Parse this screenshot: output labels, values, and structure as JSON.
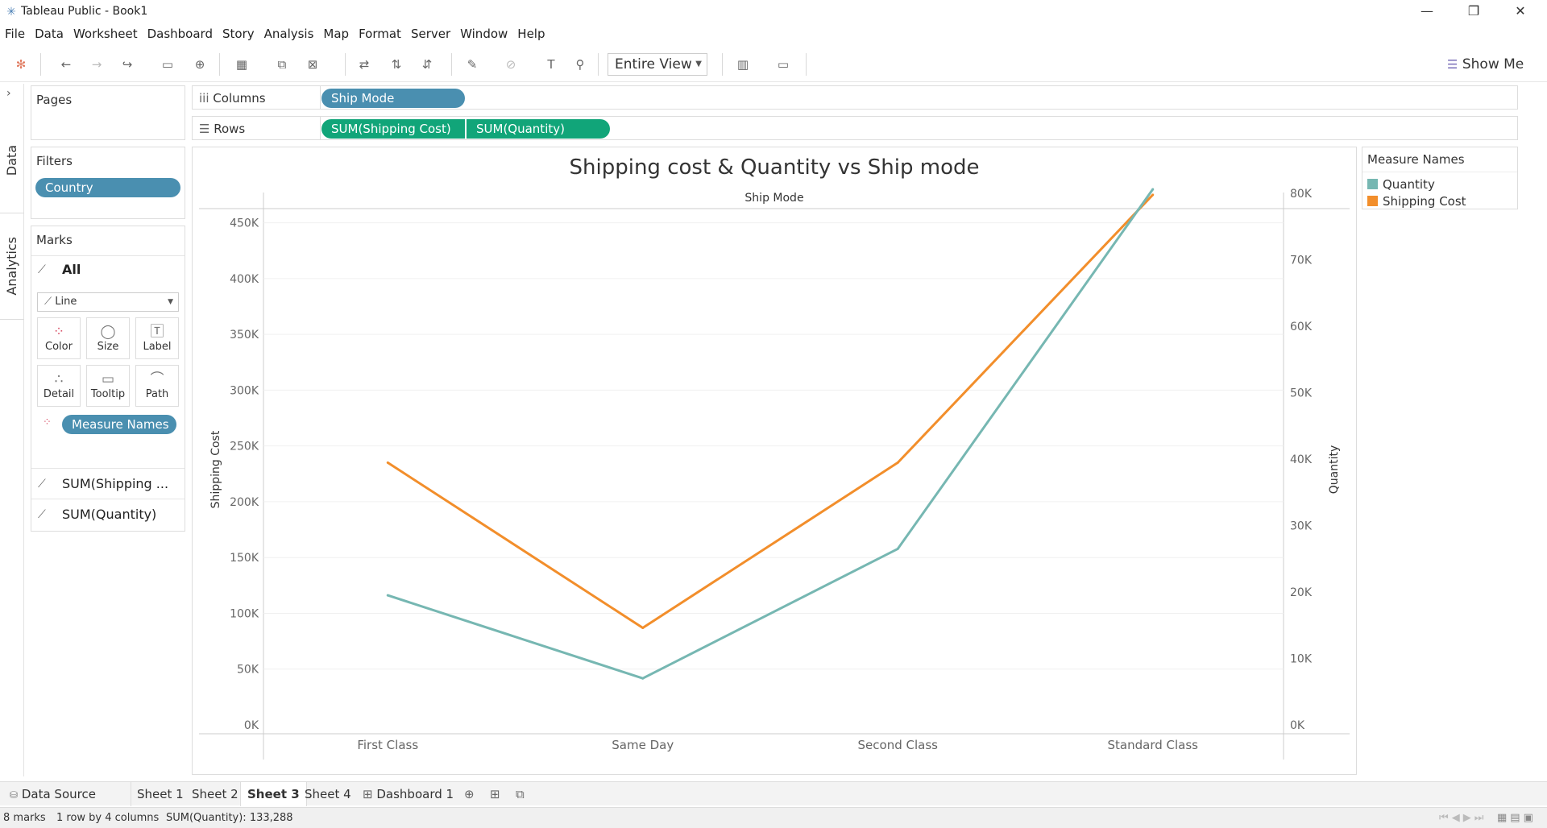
{
  "window": {
    "title": "Tableau Public - Book1",
    "minimize_icon": "minimize-icon",
    "restore_icon": "restore-icon",
    "close_icon": "close-icon"
  },
  "menu": [
    "File",
    "Data",
    "Worksheet",
    "Dashboard",
    "Story",
    "Analysis",
    "Map",
    "Format",
    "Server",
    "Window",
    "Help"
  ],
  "toolbar": {
    "view_mode": "Entire View",
    "show_me": "Show Me"
  },
  "side_tabs": {
    "data": "Data",
    "analytics": "Analytics"
  },
  "pages": {
    "title": "Pages"
  },
  "filters": {
    "title": "Filters",
    "items": [
      "Country"
    ]
  },
  "marks": {
    "title": "Marks",
    "all_label": "All",
    "mark_type": "Line",
    "buttons": [
      "Color",
      "Size",
      "Label",
      "Detail",
      "Tooltip",
      "Path"
    ],
    "color_field": "Measure Names",
    "measures": [
      "SUM(Shipping ...",
      "SUM(Quantity)"
    ]
  },
  "shelves": {
    "columns_label": "Columns",
    "rows_label": "Rows",
    "columns": [
      "Ship Mode"
    ],
    "rows": [
      "SUM(Shipping Cost)",
      "SUM(Quantity)"
    ]
  },
  "legend": {
    "title": "Measure Names",
    "items": [
      {
        "label": "Quantity",
        "color": "#76b7b2"
      },
      {
        "label": "Shipping Cost",
        "color": "#f28e2b"
      }
    ]
  },
  "chart_data": {
    "type": "line",
    "title": "Shipping cost & Quantity vs Ship mode",
    "header": "Ship Mode",
    "categories": [
      "First Class",
      "Same Day",
      "Second Class",
      "Standard Class"
    ],
    "y_left": {
      "label": "Shipping Cost",
      "ticks": [
        "0K",
        "50K",
        "100K",
        "150K",
        "200K",
        "250K",
        "300K",
        "350K",
        "400K",
        "450K"
      ],
      "range": [
        0,
        480000
      ]
    },
    "y_right": {
      "label": "Quantity",
      "ticks": [
        "0K",
        "10K",
        "20K",
        "30K",
        "40K",
        "50K",
        "60K",
        "70K",
        "80K"
      ],
      "range": [
        0,
        80600
      ]
    },
    "series": [
      {
        "name": "Shipping Cost",
        "axis": "left",
        "color": "#f28e2b",
        "values": [
          235000,
          87000,
          235000,
          475000
        ]
      },
      {
        "name": "Quantity",
        "axis": "right",
        "color": "#76b7b2",
        "values": [
          19500,
          7000,
          26500,
          80600
        ]
      }
    ],
    "grid": true
  },
  "sheets": {
    "data_source": "Data Source",
    "tabs": [
      "Sheet 1",
      "Sheet 2",
      "Sheet 3",
      "Sheet 4",
      "Dashboard 1"
    ],
    "active": "Sheet 3"
  },
  "status": {
    "marks": "8 marks",
    "layout": "1 row by 4 columns",
    "sum": "SUM(Quantity): 133,288"
  }
}
